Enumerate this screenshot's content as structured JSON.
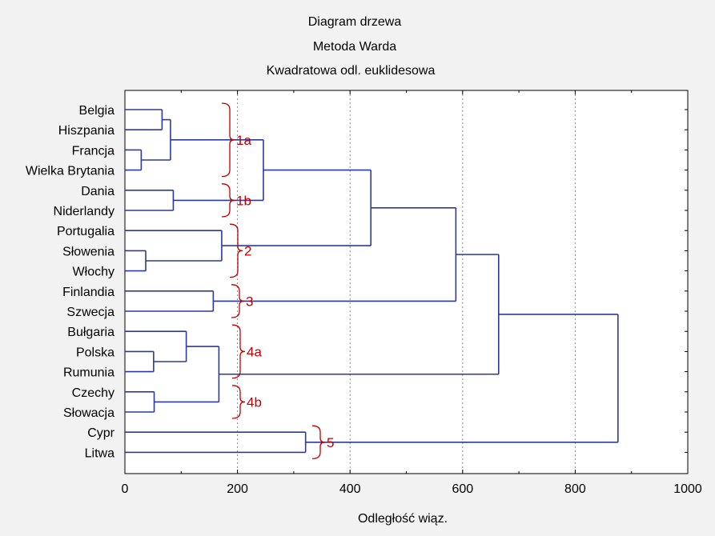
{
  "chart_data": {
    "type": "dendrogram",
    "title": "Diagram drzewa",
    "subtitle": "Metoda Warda",
    "subtitle2": "Kwadratowa odl. euklidesowa",
    "xlabel": "Odległość wiąz.",
    "xlim": [
      0,
      1000
    ],
    "xticks": [
      "0",
      "200",
      "400",
      "600",
      "800",
      "1000"
    ],
    "grid": true,
    "link_color": "#2b3a9a",
    "annotation_color": "#c00000",
    "leaves": [
      "Belgia",
      "Hiszpania",
      "Francja",
      "Wielka Brytania",
      "Dania",
      "Niderlandy",
      "Portugalia",
      "Słowenia",
      "Włochy",
      "Finlandia",
      "Szwecja",
      "Bułgaria",
      "Polska",
      "Rumunia",
      "Czechy",
      "Słowacja",
      "Cypr",
      "Litwa"
    ],
    "merges": [
      {
        "a": "L0",
        "b": "L1",
        "height": 66
      },
      {
        "a": "L2",
        "b": "L3",
        "height": 29
      },
      {
        "a": "M0",
        "b": "M1",
        "height": 81
      },
      {
        "a": "L4",
        "b": "L5",
        "height": 86
      },
      {
        "a": "M2",
        "b": "M3",
        "height": 246
      },
      {
        "a": "L7",
        "b": "L8",
        "height": 37
      },
      {
        "a": "L6",
        "b": "M5",
        "height": 172
      },
      {
        "a": "M4",
        "b": "M6",
        "height": 437
      },
      {
        "a": "L9",
        "b": "L10",
        "height": 157
      },
      {
        "a": "M7",
        "b": "M8",
        "height": 588
      },
      {
        "a": "L12",
        "b": "L13",
        "height": 51
      },
      {
        "a": "L11",
        "b": "M10",
        "height": 109
      },
      {
        "a": "L14",
        "b": "L15",
        "height": 52
      },
      {
        "a": "M11",
        "b": "M12",
        "height": 167
      },
      {
        "a": "M9",
        "b": "M13",
        "height": 664
      },
      {
        "a": "L16",
        "b": "L17",
        "height": 321
      },
      {
        "a": "M14",
        "b": "M15",
        "height": 876
      }
    ],
    "group_labels": [
      {
        "label": "1a",
        "from": 0,
        "to": 3
      },
      {
        "label": "1b",
        "from": 4,
        "to": 5
      },
      {
        "label": "2",
        "from": 6,
        "to": 8
      },
      {
        "label": "3",
        "from": 9,
        "to": 10
      },
      {
        "label": "4a",
        "from": 11,
        "to": 13
      },
      {
        "label": "4b",
        "from": 14,
        "to": 15
      },
      {
        "label": "5",
        "from": 16,
        "to": 17
      }
    ]
  }
}
